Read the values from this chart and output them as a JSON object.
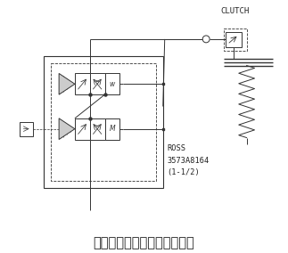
{
  "title": "エアー系統図（クラッチ部）",
  "title_fontsize": 10.5,
  "clutch_label": "CLUTCH",
  "ross_label": "ROSS\n3573A8164\n(1-1/2)",
  "bg_color": "#ffffff",
  "line_color": "#333333",
  "font_color": "#222222",
  "figsize": [
    3.23,
    2.84
  ],
  "dpi": 100
}
